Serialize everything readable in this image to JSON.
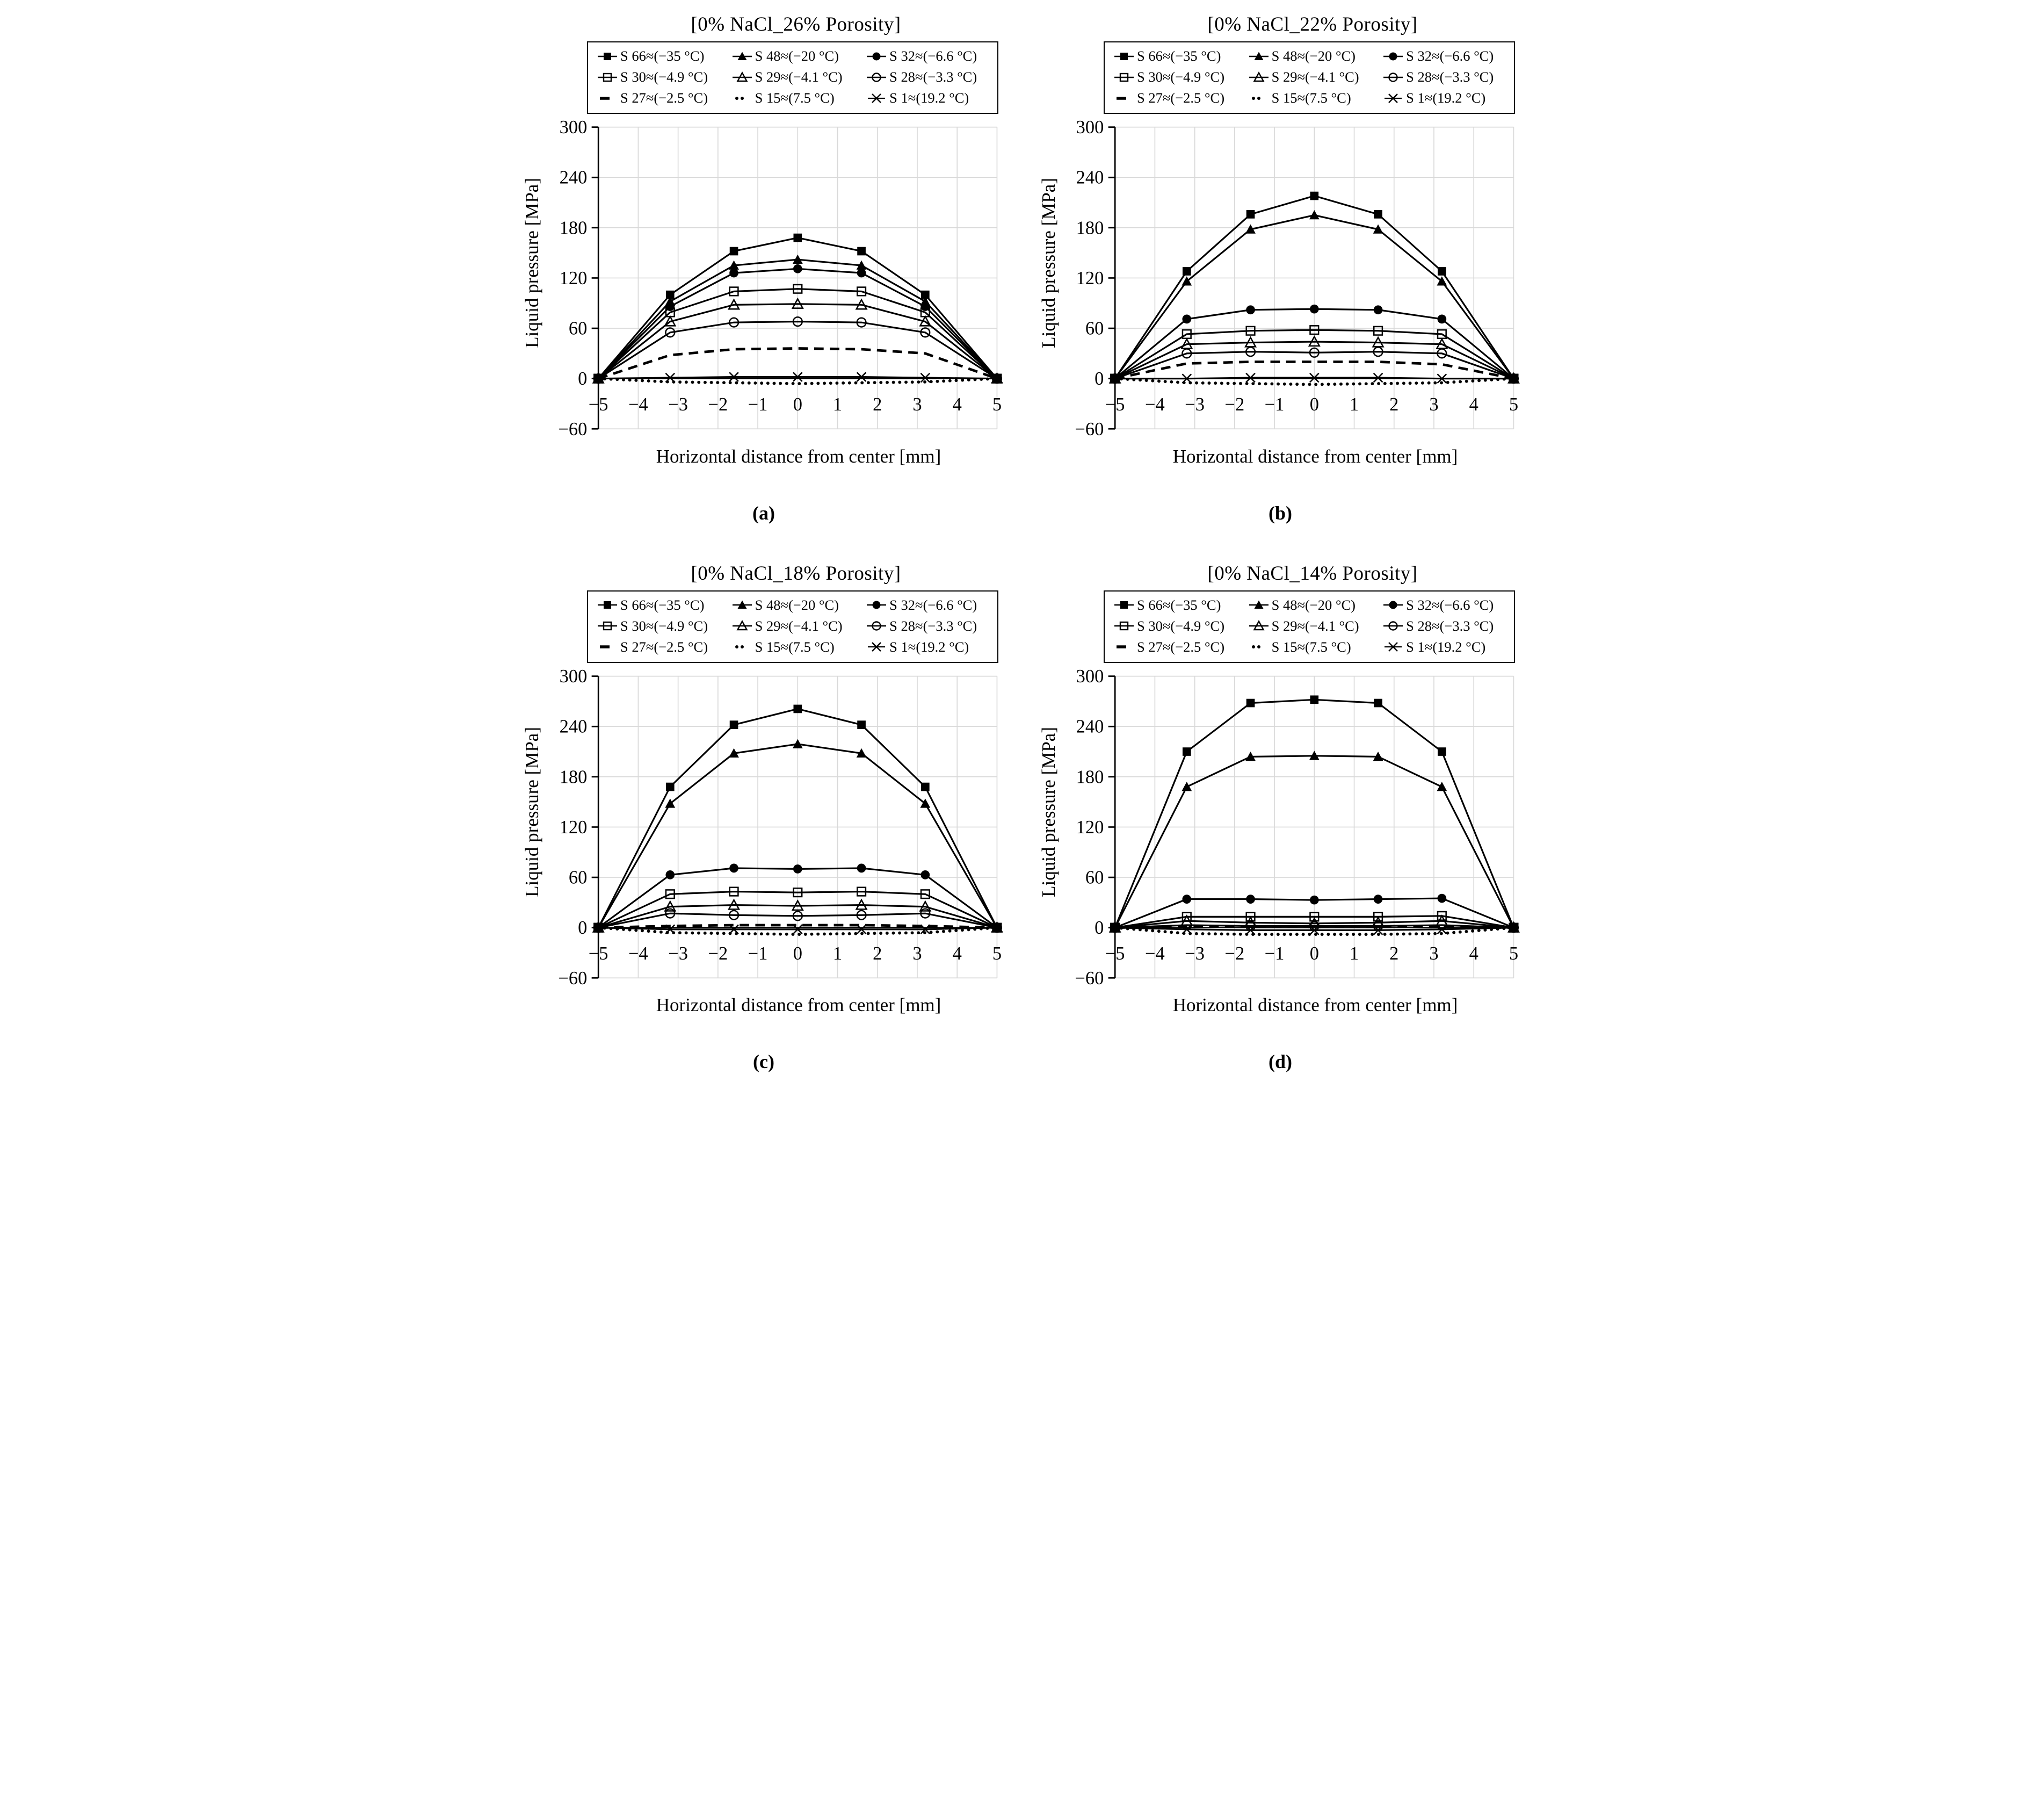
{
  "figure": {
    "x_label": "Horizontal distance from center [mm]",
    "y_label": "Liquid pressure [MPa]",
    "xlim": [
      -5,
      5
    ],
    "ylim": [
      -60,
      300
    ],
    "x_ticks": [
      -5,
      -4,
      -3,
      -2,
      -1,
      0,
      1,
      2,
      3,
      4,
      5
    ],
    "y_ticks": [
      300,
      240,
      180,
      120,
      60,
      0,
      -60
    ],
    "grid": true,
    "grid_color": "#d9d9d9",
    "series_color": "#000000",
    "background_color": "#ffffff",
    "legend_position": "top"
  },
  "legend": {
    "items": [
      {
        "label": "S 66≈(−35 °C)",
        "marker": "filled-square",
        "line": "solid"
      },
      {
        "label": "S 48≈(−20 °C)",
        "marker": "filled-triangle",
        "line": "solid"
      },
      {
        "label": "S 32≈(−6.6 °C)",
        "marker": "filled-circle",
        "line": "solid"
      },
      {
        "label": "S 30≈(−4.9 °C)",
        "marker": "open-square",
        "line": "solid"
      },
      {
        "label": "S 29≈(−4.1 °C)",
        "marker": "open-triangle",
        "line": "solid"
      },
      {
        "label": "S 28≈(−3.3 °C)",
        "marker": "open-circle",
        "line": "solid"
      },
      {
        "label": "S 27≈(−2.5 °C)",
        "marker": "none",
        "line": "dashed"
      },
      {
        "label": "S 15≈(7.5 °C)",
        "marker": "none",
        "line": "dotted"
      },
      {
        "label": "S 1≈(19.2 °C)",
        "marker": "x-cross",
        "line": "solid"
      }
    ]
  },
  "chart_data": [
    {
      "type": "line",
      "title": "[0% NaCl_26% Porosity]",
      "caption": "(a)",
      "x": [
        -5,
        -3.2,
        -1.6,
        0,
        1.6,
        3.2,
        5
      ],
      "series": [
        {
          "name": "S 66≈(−35 °C)",
          "values": [
            0,
            100,
            152,
            168,
            152,
            100,
            0
          ]
        },
        {
          "name": "S 48≈(−20 °C)",
          "values": [
            0,
            92,
            135,
            142,
            135,
            92,
            0
          ]
        },
        {
          "name": "S 32≈(−6.6 °C)",
          "values": [
            0,
            86,
            126,
            131,
            126,
            86,
            0
          ]
        },
        {
          "name": "S 30≈(−4.9 °C)",
          "values": [
            0,
            79,
            104,
            107,
            104,
            79,
            0
          ]
        },
        {
          "name": "S 29≈(−4.1 °C)",
          "values": [
            0,
            68,
            88,
            89,
            88,
            68,
            0
          ]
        },
        {
          "name": "S 28≈(−3.3 °C)",
          "values": [
            0,
            55,
            67,
            68,
            67,
            55,
            0
          ]
        },
        {
          "name": "S 27≈(−2.5 °C)",
          "values": [
            0,
            28,
            35,
            36,
            35,
            30,
            0
          ]
        },
        {
          "name": "S 15≈(7.5 °C)",
          "values": [
            0,
            -4,
            -5,
            -6,
            -5,
            -4,
            0
          ]
        },
        {
          "name": "S 1≈(19.2 °C)",
          "values": [
            0,
            1,
            2,
            2,
            2,
            1,
            0
          ]
        }
      ]
    },
    {
      "type": "line",
      "title": "[0% NaCl_22% Porosity]",
      "caption": "(b)",
      "x": [
        -5,
        -3.2,
        -1.6,
        0,
        1.6,
        3.2,
        5
      ],
      "series": [
        {
          "name": "S 66≈(−35 °C)",
          "values": [
            0,
            128,
            196,
            218,
            196,
            128,
            0
          ]
        },
        {
          "name": "S 48≈(−20 °C)",
          "values": [
            0,
            116,
            178,
            195,
            178,
            116,
            0
          ]
        },
        {
          "name": "S 32≈(−6.6 °C)",
          "values": [
            0,
            71,
            82,
            83,
            82,
            71,
            0
          ]
        },
        {
          "name": "S 30≈(−4.9 °C)",
          "values": [
            0,
            53,
            57,
            58,
            57,
            53,
            0
          ]
        },
        {
          "name": "S 29≈(−4.1 °C)",
          "values": [
            0,
            41,
            43,
            44,
            43,
            41,
            0
          ]
        },
        {
          "name": "S 28≈(−3.3 °C)",
          "values": [
            0,
            30,
            32,
            31,
            32,
            30,
            0
          ]
        },
        {
          "name": "S 27≈(−2.5 °C)",
          "values": [
            0,
            18,
            20,
            20,
            20,
            17,
            0
          ]
        },
        {
          "name": "S 15≈(7.5 °C)",
          "values": [
            0,
            -5,
            -6,
            -7,
            -6,
            -5,
            0
          ]
        },
        {
          "name": "S 1≈(19.2 °C)",
          "values": [
            0,
            0,
            1,
            1,
            1,
            0,
            0
          ]
        }
      ]
    },
    {
      "type": "line",
      "title": "[0% NaCl_18% Porosity]",
      "caption": "(c)",
      "x": [
        -5,
        -3.2,
        -1.6,
        0,
        1.6,
        3.2,
        5
      ],
      "series": [
        {
          "name": "S 66≈(−35 °C)",
          "values": [
            0,
            168,
            242,
            261,
            242,
            168,
            0
          ]
        },
        {
          "name": "S 48≈(−20 °C)",
          "values": [
            0,
            148,
            208,
            219,
            208,
            148,
            0
          ]
        },
        {
          "name": "S 32≈(−6.6 °C)",
          "values": [
            0,
            63,
            71,
            70,
            71,
            63,
            0
          ]
        },
        {
          "name": "S 30≈(−4.9 °C)",
          "values": [
            0,
            40,
            43,
            42,
            43,
            40,
            0
          ]
        },
        {
          "name": "S 29≈(−4.1 °C)",
          "values": [
            0,
            25,
            27,
            26,
            27,
            25,
            0
          ]
        },
        {
          "name": "S 28≈(−3.3 °C)",
          "values": [
            0,
            17,
            15,
            14,
            15,
            17,
            0
          ]
        },
        {
          "name": "S 27≈(−2.5 °C)",
          "values": [
            0,
            2,
            3,
            3,
            3,
            2,
            0
          ]
        },
        {
          "name": "S 15≈(7.5 °C)",
          "values": [
            0,
            -6,
            -7,
            -8,
            -7,
            -6,
            0
          ]
        },
        {
          "name": "S 1≈(19.2 °C)",
          "values": [
            0,
            -2,
            -2,
            -2,
            -2,
            -2,
            0
          ]
        }
      ]
    },
    {
      "type": "line",
      "title": "[0% NaCl_14% Porosity]",
      "caption": "(d)",
      "x": [
        -5,
        -3.2,
        -1.6,
        0,
        1.6,
        3.2,
        5
      ],
      "series": [
        {
          "name": "S 66≈(−35 °C)",
          "values": [
            0,
            210,
            268,
            272,
            268,
            210,
            0
          ]
        },
        {
          "name": "S 48≈(−20 °C)",
          "values": [
            0,
            168,
            204,
            205,
            204,
            168,
            0
          ]
        },
        {
          "name": "S 32≈(−6.6 °C)",
          "values": [
            0,
            34,
            34,
            33,
            34,
            35,
            0
          ]
        },
        {
          "name": "S 30≈(−4.9 °C)",
          "values": [
            0,
            13,
            13,
            13,
            13,
            14,
            0
          ]
        },
        {
          "name": "S 29≈(−4.1 °C)",
          "values": [
            0,
            8,
            6,
            5,
            6,
            8,
            0
          ]
        },
        {
          "name": "S 28≈(−3.3 °C)",
          "values": [
            0,
            3,
            2,
            2,
            2,
            3,
            0
          ]
        },
        {
          "name": "S 27≈(−2.5 °C)",
          "values": [
            0,
            1,
            1,
            1,
            1,
            1,
            0
          ]
        },
        {
          "name": "S 15≈(7.5 °C)",
          "values": [
            0,
            -7,
            -8,
            -8,
            -8,
            -7,
            0
          ]
        },
        {
          "name": "S 1≈(19.2 °C)",
          "values": [
            0,
            -2,
            -3,
            -3,
            -3,
            -2,
            0
          ]
        }
      ]
    }
  ]
}
